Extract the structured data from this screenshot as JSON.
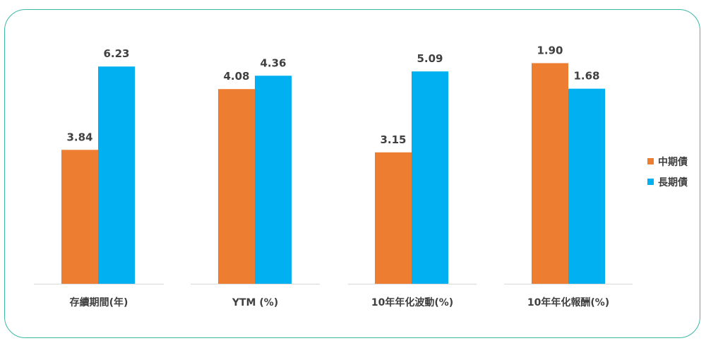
{
  "chart_data": {
    "type": "bar",
    "panels": [
      {
        "category": "存續期間(年)",
        "values": [
          3.84,
          6.23
        ],
        "labels": [
          "3.84",
          "6.23"
        ]
      },
      {
        "category": "YTM (%)",
        "values": [
          4.08,
          4.36
        ],
        "labels": [
          "4.08",
          "4.36"
        ]
      },
      {
        "category": "10年年化波動(%)",
        "values": [
          3.15,
          5.09
        ],
        "labels": [
          "3.15",
          "5.09"
        ]
      },
      {
        "category": "10年年化報酬(%)",
        "values": [
          1.9,
          1.68
        ],
        "labels": [
          "1.90",
          "1.68"
        ]
      }
    ],
    "series": [
      {
        "name": "中期債",
        "color": "#ed7d31"
      },
      {
        "name": "長期債",
        "color": "#00b0f0"
      }
    ],
    "legend_position": "right",
    "grid": false
  }
}
